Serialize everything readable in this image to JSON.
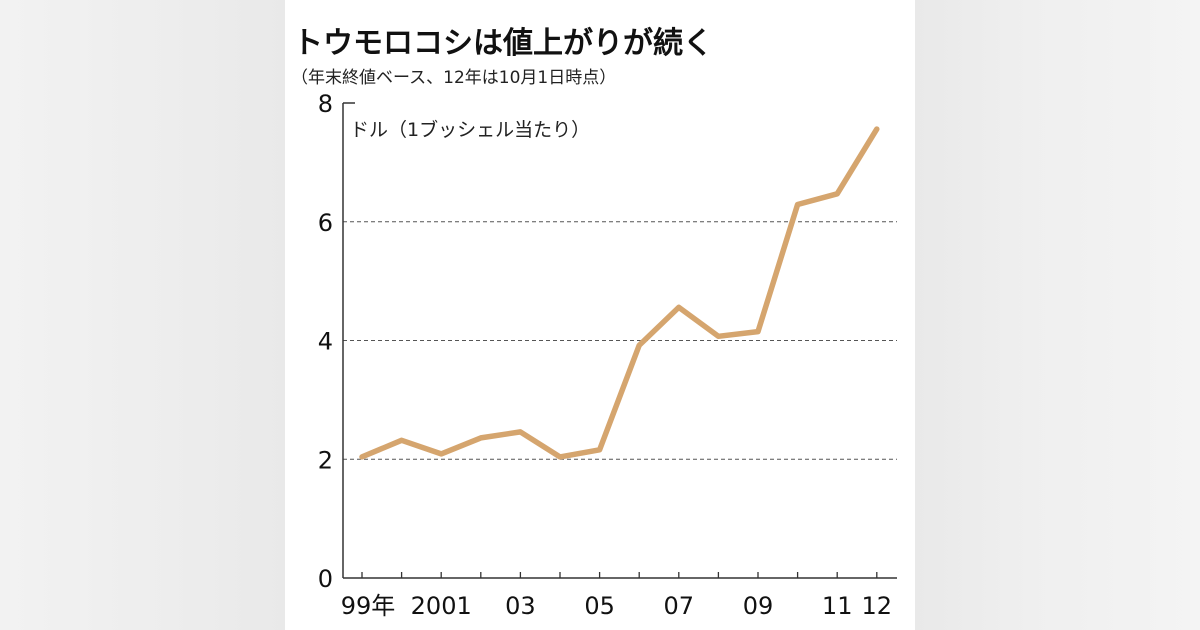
{
  "title": "トウモロコシは値上がりが続く",
  "subtitle": "（年末終値ベース、12年は10月1日時点）",
  "chart_data": {
    "type": "line",
    "title": "トウモロコシは値上がりが続く",
    "subtitle": "（年末終値ベース、12年は10月1日時点）",
    "ylabel": "ドル（1ブッシェル当たり）",
    "xlabel": "",
    "ylim": [
      0,
      8
    ],
    "yticks": [
      0,
      2,
      4,
      6,
      8
    ],
    "grid": "dashed horizontal at 2, 4, 6",
    "x": [
      "1999",
      "2000",
      "2001",
      "2002",
      "2003",
      "2004",
      "2005",
      "2006",
      "2007",
      "2008",
      "2009",
      "2010",
      "2011",
      "2012"
    ],
    "x_tick_labels": [
      "99年",
      "",
      "2001",
      "",
      "03",
      "",
      "05",
      "",
      "07",
      "",
      "09",
      "",
      "11",
      "12"
    ],
    "series": [
      {
        "values": [
          2.04,
          2.32,
          2.09,
          2.36,
          2.46,
          2.04,
          2.16,
          3.92,
          4.56,
          4.07,
          4.15,
          6.29,
          6.47,
          7.56
        ],
        "color": "#d5a56e"
      }
    ]
  }
}
